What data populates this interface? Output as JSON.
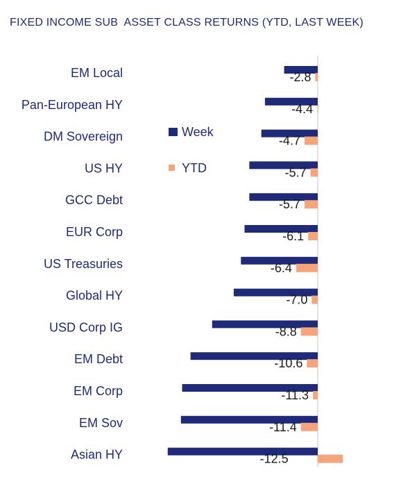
{
  "chart_data": {
    "type": "bar",
    "orientation": "horizontal",
    "title": "FIXED INCOME SUB  ASSET CLASS RETURNS (YTD, LAST WEEK)",
    "categories": [
      "EM Local",
      "Pan-European HY",
      "DM Sovereign",
      "US HY",
      "GCC Debt",
      "EUR Corp",
      "US Treasuries",
      "Global HY",
      "USD Corp IG",
      "EM Debt",
      "EM Corp",
      "EM Sov",
      "Asian HY"
    ],
    "series": [
      {
        "name": "YTD",
        "color": "#1f2a78",
        "values": [
          -2.8,
          -4.4,
          -4.7,
          -5.7,
          -5.7,
          -6.1,
          -6.4,
          -7.0,
          -8.8,
          -10.6,
          -11.3,
          -11.4,
          -12.5
        ]
      },
      {
        "name": "Week",
        "color": "#f5a57b",
        "values": [
          -0.2,
          0.05,
          -1.1,
          -0.6,
          -1.1,
          -0.8,
          -1.8,
          -0.5,
          -1.4,
          -0.9,
          -0.4,
          -1.4,
          2.1
        ]
      }
    ],
    "data_labels": [
      "-2.8",
      "-4.4",
      "-4.7",
      "-5.7",
      "-5.7",
      "-6.1",
      "-6.4",
      "-7.0",
      "-8.8",
      "-10.6",
      "-11.3",
      "-11.4",
      "-12.5"
    ],
    "legend": {
      "position": "top-center",
      "entries": [
        "Week",
        "YTD"
      ]
    },
    "grid": false
  }
}
